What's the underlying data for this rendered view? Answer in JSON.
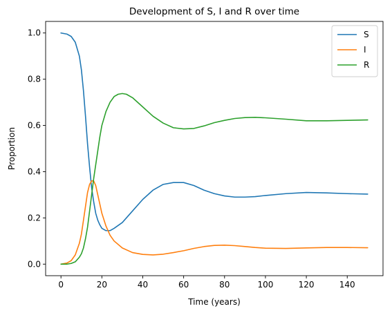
{
  "chart_data": {
    "type": "line",
    "title": "Development of S, I and R over time",
    "xlabel": "Time (years)",
    "ylabel": "Proportion",
    "xlim": [
      -7.5,
      157.5
    ],
    "ylim": [
      -0.05,
      1.05
    ],
    "xticks": [
      0,
      20,
      40,
      60,
      80,
      100,
      120,
      140
    ],
    "yticks": [
      0.0,
      0.2,
      0.4,
      0.6,
      0.8,
      1.0
    ],
    "xtick_labels": [
      "0",
      "20",
      "40",
      "60",
      "80",
      "100",
      "120",
      "140"
    ],
    "ytick_labels": [
      "0.0",
      "0.2",
      "0.4",
      "0.6",
      "0.8",
      "1.0"
    ],
    "grid": false,
    "legend_position": "top-right",
    "series": [
      {
        "name": "S",
        "color": "#1f77b4",
        "x": [
          0,
          3,
          5,
          7,
          9,
          10,
          11,
          12,
          13,
          14,
          15,
          16,
          17,
          18,
          19,
          20,
          22,
          24,
          26,
          30,
          35,
          40,
          45,
          50,
          55,
          60,
          65,
          70,
          75,
          80,
          85,
          90,
          95,
          100,
          110,
          120,
          130,
          140,
          150
        ],
        "y": [
          1.0,
          0.995,
          0.985,
          0.96,
          0.9,
          0.84,
          0.75,
          0.64,
          0.52,
          0.42,
          0.33,
          0.27,
          0.22,
          0.19,
          0.17,
          0.155,
          0.145,
          0.145,
          0.155,
          0.18,
          0.23,
          0.28,
          0.32,
          0.345,
          0.353,
          0.353,
          0.34,
          0.32,
          0.305,
          0.295,
          0.29,
          0.29,
          0.292,
          0.297,
          0.305,
          0.31,
          0.308,
          0.305,
          0.303
        ]
      },
      {
        "name": "I",
        "color": "#ff7f0e",
        "x": [
          0,
          3,
          5,
          7,
          9,
          10,
          11,
          12,
          13,
          14,
          15,
          16,
          17,
          18,
          19,
          20,
          22,
          24,
          26,
          30,
          35,
          40,
          45,
          50,
          55,
          60,
          65,
          70,
          75,
          80,
          85,
          90,
          95,
          100,
          110,
          120,
          130,
          140,
          150
        ],
        "y": [
          0.0,
          0.005,
          0.015,
          0.04,
          0.09,
          0.13,
          0.19,
          0.25,
          0.31,
          0.345,
          0.36,
          0.36,
          0.34,
          0.3,
          0.26,
          0.22,
          0.165,
          0.125,
          0.1,
          0.07,
          0.05,
          0.042,
          0.04,
          0.043,
          0.05,
          0.058,
          0.068,
          0.076,
          0.081,
          0.082,
          0.08,
          0.076,
          0.072,
          0.069,
          0.068,
          0.07,
          0.072,
          0.072,
          0.071
        ]
      },
      {
        "name": "R",
        "color": "#2ca02c",
        "x": [
          0,
          3,
          5,
          7,
          9,
          10,
          11,
          12,
          13,
          14,
          15,
          16,
          17,
          18,
          19,
          20,
          22,
          24,
          26,
          28,
          30,
          32,
          35,
          40,
          45,
          50,
          55,
          60,
          65,
          70,
          75,
          80,
          85,
          90,
          95,
          100,
          110,
          120,
          130,
          140,
          150
        ],
        "y": [
          0.0,
          0.0,
          0.003,
          0.01,
          0.03,
          0.045,
          0.07,
          0.11,
          0.16,
          0.23,
          0.3,
          0.37,
          0.43,
          0.49,
          0.55,
          0.6,
          0.66,
          0.7,
          0.725,
          0.735,
          0.738,
          0.735,
          0.72,
          0.68,
          0.64,
          0.61,
          0.59,
          0.585,
          0.587,
          0.598,
          0.612,
          0.622,
          0.63,
          0.634,
          0.635,
          0.633,
          0.627,
          0.62,
          0.62,
          0.622,
          0.624
        ]
      }
    ]
  }
}
